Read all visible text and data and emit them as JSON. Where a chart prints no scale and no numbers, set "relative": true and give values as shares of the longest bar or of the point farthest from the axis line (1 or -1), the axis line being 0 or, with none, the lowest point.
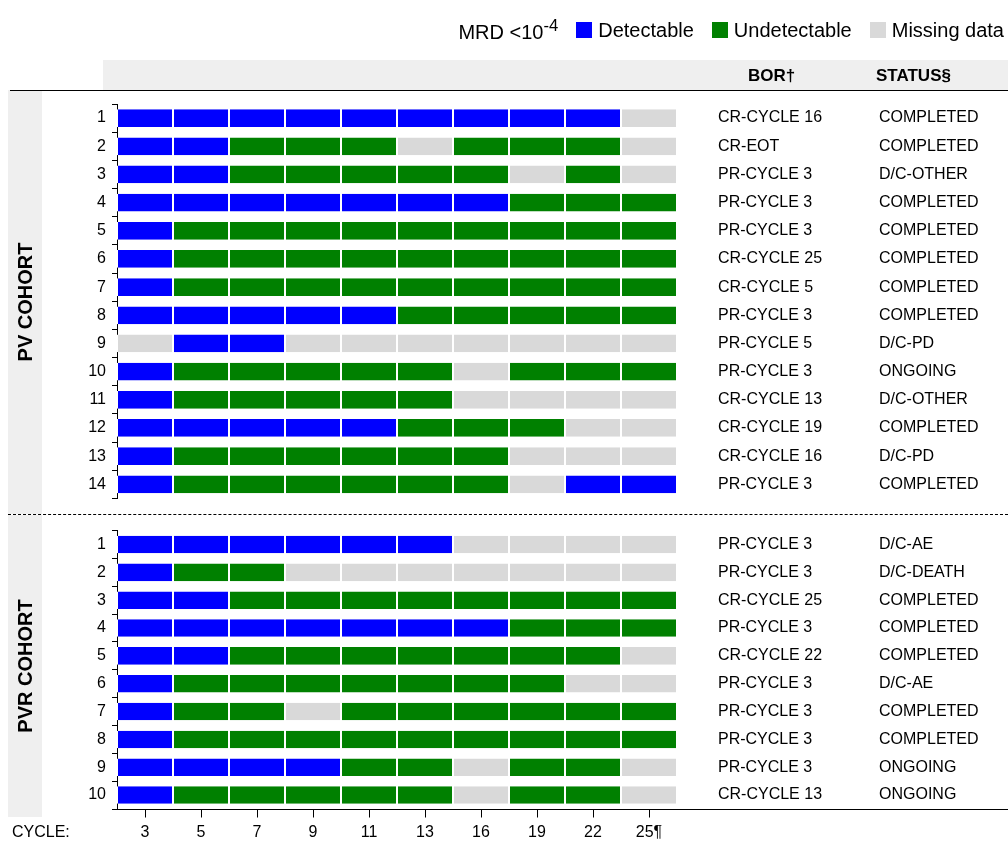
{
  "chart_data": [
    {
      "type": "bar",
      "orientation": "horizontal",
      "stacked": true,
      "relative": true,
      "legend": "top right",
      "legend_title": "MRD <10$^{-4}$",
      "ylabel": "PV COHORT",
      "categories": [
        "1",
        "2",
        "3",
        "4",
        "5",
        "6",
        "7",
        "8",
        "9",
        "10",
        "11",
        "12",
        "13",
        "14"
      ],
      "series": [
        {
          "name": "Detectable",
          "color": "#0000ff",
          "values": [
            null,
            null,
            null,
            null,
            null,
            null,
            null,
            null,
            null,
            null,
            null,
            null,
            null,
            null
          ]
        },
        {
          "name": "Undetectable",
          "color": "#008000",
          "values": [
            null,
            null,
            null,
            null,
            null,
            null,
            null,
            null,
            null,
            null,
            null,
            null,
            null,
            null
          ]
        },
        {
          "name": "Missing data",
          "color": "#d9d9d9",
          "values": [
            null,
            null,
            null,
            null,
            null,
            null,
            null,
            null,
            null,
            null,
            null,
            null,
            null,
            null
          ]
        },
        {
          "values": [
            0.1,
            0.1,
            0.1,
            0.1,
            0.1,
            0.1,
            0.1,
            0.1,
            0.1,
            0.1,
            0.1,
            0.1,
            0.1,
            0.1
          ],
          "colors": [
            "#0000ff",
            "#0000ff",
            "#0000ff",
            "#0000ff",
            "#0000ff",
            "#0000ff",
            "#0000ff",
            "#0000ff",
            "#d9d9d9",
            "#0000ff",
            "#0000ff",
            "#0000ff",
            "#0000ff",
            "#0000ff"
          ]
        },
        {
          "values": [
            0.1,
            0.1,
            0.1,
            0.1,
            0.1,
            0.1,
            0.1,
            0.1,
            0.1,
            0.1,
            0.1,
            0.1,
            0.1,
            0.1
          ],
          "colors": [
            "#0000ff",
            "#0000ff",
            "#0000ff",
            "#0000ff",
            "#008000",
            "#008000",
            "#008000",
            "#0000ff",
            "#0000ff",
            "#008000",
            "#008000",
            "#0000ff",
            "#008000",
            "#008000"
          ]
        },
        {
          "values": [
            0.1,
            0.1,
            0.1,
            0.1,
            0.1,
            0.1,
            0.1,
            0.1,
            0.1,
            0.1,
            0.1,
            0.1,
            0.1,
            0.1
          ],
          "colors": [
            "#0000ff",
            "#008000",
            "#008000",
            "#0000ff",
            "#008000",
            "#008000",
            "#008000",
            "#0000ff",
            "#0000ff",
            "#008000",
            "#008000",
            "#0000ff",
            "#008000",
            "#008000"
          ]
        },
        {
          "values": [
            0.1,
            0.1,
            0.1,
            0.1,
            0.1,
            0.1,
            0.1,
            0.1,
            0.1,
            0.1,
            0.1,
            0.1,
            0.1,
            0.1
          ],
          "colors": [
            "#0000ff",
            "#008000",
            "#008000",
            "#0000ff",
            "#008000",
            "#008000",
            "#008000",
            "#0000ff",
            "#d9d9d9",
            "#008000",
            "#008000",
            "#0000ff",
            "#008000",
            "#008000"
          ]
        },
        {
          "values": [
            0.1,
            0.1,
            0.1,
            0.1,
            0.1,
            0.1,
            0.1,
            0.1,
            0.1,
            0.1,
            0.1,
            0.1,
            0.1,
            0.1
          ],
          "colors": [
            "#0000ff",
            "#008000",
            "#008000",
            "#0000ff",
            "#008000",
            "#008000",
            "#008000",
            "#0000ff",
            "#d9d9d9",
            "#008000",
            "#008000",
            "#0000ff",
            "#008000",
            "#008000"
          ]
        },
        {
          "values": [
            0.1,
            0.1,
            0.1,
            0.1,
            0.1,
            0.1,
            0.1,
            0.1,
            0.1,
            0.1,
            0.1,
            0.1,
            0.1,
            0.1
          ],
          "colors": [
            "#0000ff",
            "#d9d9d9",
            "#008000",
            "#0000ff",
            "#008000",
            "#008000",
            "#008000",
            "#008000",
            "#d9d9d9",
            "#008000",
            "#008000",
            "#008000",
            "#008000",
            "#008000"
          ]
        },
        {
          "values": [
            0.1,
            0.1,
            0.1,
            0.1,
            0.1,
            0.1,
            0.1,
            0.1,
            0.1,
            0.1,
            0.1,
            0.1,
            0.1,
            0.1
          ],
          "colors": [
            "#0000ff",
            "#008000",
            "#008000",
            "#0000ff",
            "#008000",
            "#008000",
            "#008000",
            "#008000",
            "#d9d9d9",
            "#d9d9d9",
            "#d9d9d9",
            "#008000",
            "#008000",
            "#008000"
          ]
        },
        {
          "values": [
            0.1,
            0.1,
            0.1,
            0.1,
            0.1,
            0.1,
            0.1,
            0.1,
            0.1,
            0.1,
            0.1,
            0.1,
            0.1,
            0.1
          ],
          "colors": [
            "#0000ff",
            "#008000",
            "#d9d9d9",
            "#008000",
            "#008000",
            "#008000",
            "#008000",
            "#008000",
            "#d9d9d9",
            "#008000",
            "#d9d9d9",
            "#008000",
            "#d9d9d9",
            "#d9d9d9"
          ]
        },
        {
          "values": [
            0.1,
            0.1,
            0.1,
            0.1,
            0.1,
            0.1,
            0.1,
            0.1,
            0.1,
            0.1,
            0.1,
            0.1,
            0.1,
            0.1
          ],
          "colors": [
            "#0000ff",
            "#008000",
            "#008000",
            "#008000",
            "#008000",
            "#008000",
            "#008000",
            "#008000",
            "#d9d9d9",
            "#008000",
            "#d9d9d9",
            "#d9d9d9",
            "#d9d9d9",
            "#0000ff"
          ]
        },
        {
          "values": [
            0.1,
            0.1,
            0.1,
            0.1,
            0.1,
            0.1,
            0.1,
            0.1,
            0.1,
            0.1,
            0.1,
            0.1,
            0.1,
            0.1
          ],
          "colors": [
            "#d9d9d9",
            "#d9d9d9",
            "#d9d9d9",
            "#008000",
            "#008000",
            "#008000",
            "#008000",
            "#008000",
            "#d9d9d9",
            "#008000",
            "#d9d9d9",
            "#d9d9d9",
            "#d9d9d9",
            "#0000ff"
          ]
        }
      ],
      "annotations": [
        "BOR†",
        "STATUS§",
        "CR-CYCLE 16",
        "COMPLETED",
        "CR-EOT",
        "COMPLETED",
        "PR-CYCLE 3",
        "D/C-OTHER",
        "PR-CYCLE 3",
        "COMPLETED",
        "PR-CYCLE 3",
        "COMPLETED",
        "CR-CYCLE 25",
        "COMPLETED",
        "CR-CYCLE 5",
        "COMPLETED",
        "PR-CYCLE 3",
        "COMPLETED",
        "PR-CYCLE 5",
        "D/C-PD",
        "PR-CYCLE 3",
        "ONGOING",
        "CR-CYCLE 13",
        "D/C-OTHER",
        "CR-CYCLE 19",
        "COMPLETED",
        "CR-CYCLE 16",
        "D/C-PD",
        "PR-CYCLE 3",
        "COMPLETED"
      ]
    },
    {
      "type": "bar",
      "orientation": "horizontal",
      "stacked": true,
      "relative": true,
      "ylabel": "PVR COHORT",
      "xlabel": "CYCLE:",
      "categories": [
        "1",
        "2",
        "3",
        "4",
        "5",
        "6",
        "7",
        "8",
        "9",
        "10"
      ],
      "series": [
        {
          "name": "3",
          "values": [
            0.1,
            0.1,
            0.1,
            0.1,
            0.1,
            0.1,
            0.1,
            0.1,
            0.1,
            0.1
          ],
          "colors": [
            "#0000ff",
            "#0000ff",
            "#0000ff",
            "#0000ff",
            "#0000ff",
            "#0000ff",
            "#0000ff",
            "#0000ff",
            "#0000ff",
            "#0000ff"
          ]
        },
        {
          "name": "5",
          "values": [
            0.1,
            0.1,
            0.1,
            0.1,
            0.1,
            0.1,
            0.1,
            0.1,
            0.1,
            0.1
          ],
          "colors": [
            "#0000ff",
            "#008000",
            "#0000ff",
            "#0000ff",
            "#0000ff",
            "#008000",
            "#008000",
            "#008000",
            "#0000ff",
            "#008000"
          ]
        },
        {
          "name": "7",
          "values": [
            0.1,
            0.1,
            0.1,
            0.1,
            0.1,
            0.1,
            0.1,
            0.1,
            0.1,
            0.1
          ],
          "colors": [
            "#0000ff",
            "#008000",
            "#008000",
            "#0000ff",
            "#008000",
            "#008000",
            "#008000",
            "#008000",
            "#0000ff",
            "#008000"
          ]
        },
        {
          "name": "9",
          "values": [
            0.1,
            0.1,
            0.1,
            0.1,
            0.1,
            0.1,
            0.1,
            0.1,
            0.1,
            0.1
          ],
          "colors": [
            "#0000ff",
            "#d9d9d9",
            "#008000",
            "#0000ff",
            "#008000",
            "#008000",
            "#d9d9d9",
            "#008000",
            "#0000ff",
            "#008000"
          ]
        },
        {
          "name": "11",
          "values": [
            0.1,
            0.1,
            0.1,
            0.1,
            0.1,
            0.1,
            0.1,
            0.1,
            0.1,
            0.1
          ],
          "colors": [
            "#0000ff",
            "#d9d9d9",
            "#008000",
            "#0000ff",
            "#008000",
            "#008000",
            "#008000",
            "#008000",
            "#008000",
            "#008000"
          ]
        },
        {
          "name": "13",
          "values": [
            0.1,
            0.1,
            0.1,
            0.1,
            0.1,
            0.1,
            0.1,
            0.1,
            0.1,
            0.1
          ],
          "colors": [
            "#0000ff",
            "#d9d9d9",
            "#008000",
            "#0000ff",
            "#008000",
            "#008000",
            "#008000",
            "#008000",
            "#008000",
            "#008000"
          ]
        },
        {
          "name": "16",
          "values": [
            0.1,
            0.1,
            0.1,
            0.1,
            0.1,
            0.1,
            0.1,
            0.1,
            0.1,
            0.1
          ],
          "colors": [
            "#d9d9d9",
            "#d9d9d9",
            "#008000",
            "#0000ff",
            "#008000",
            "#008000",
            "#008000",
            "#008000",
            "#d9d9d9",
            "#d9d9d9"
          ]
        },
        {
          "name": "19",
          "values": [
            0.1,
            0.1,
            0.1,
            0.1,
            0.1,
            0.1,
            0.1,
            0.1,
            0.1,
            0.1
          ],
          "colors": [
            "#d9d9d9",
            "#d9d9d9",
            "#008000",
            "#008000",
            "#008000",
            "#008000",
            "#008000",
            "#008000",
            "#008000",
            "#008000"
          ]
        },
        {
          "name": "22",
          "values": [
            0.1,
            0.1,
            0.1,
            0.1,
            0.1,
            0.1,
            0.1,
            0.1,
            0.1,
            0.1
          ],
          "colors": [
            "#d9d9d9",
            "#d9d9d9",
            "#008000",
            "#008000",
            "#008000",
            "#d9d9d9",
            "#008000",
            "#008000",
            "#008000",
            "#008000"
          ]
        },
        {
          "name": "25¶",
          "values": [
            0.1,
            0.1,
            0.1,
            0.1,
            0.1,
            0.1,
            0.1,
            0.1,
            0.1,
            0.1
          ],
          "colors": [
            "#d9d9d9",
            "#d9d9d9",
            "#008000",
            "#008000",
            "#d9d9d9",
            "#d9d9d9",
            "#008000",
            "#008000",
            "#d9d9d9",
            "#d9d9d9"
          ]
        }
      ],
      "annotations": [
        "PR-CYCLE 3",
        "D/C-AE",
        "PR-CYCLE 3",
        "D/C-DEATH",
        "CR-CYCLE 25",
        "COMPLETED",
        "PR-CYCLE 3",
        "COMPLETED",
        "CR-CYCLE 22",
        "COMPLETED",
        "PR-CYCLE 3",
        "D/C-AE",
        "PR-CYCLE 3",
        "COMPLETED",
        "PR-CYCLE 3",
        "COMPLETED",
        "PR-CYCLE 3",
        "ONGOING",
        "CR-CYCLE 13",
        "ONGOING"
      ]
    }
  ]
}
